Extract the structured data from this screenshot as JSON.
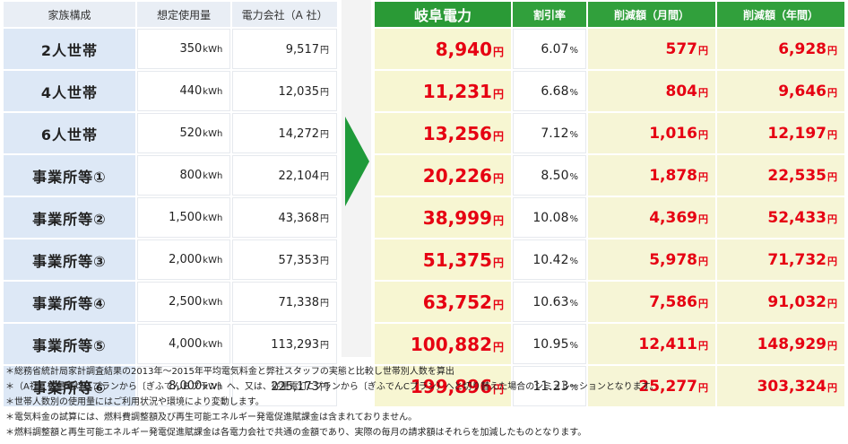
{
  "left": {
    "headers": [
      "家族構成",
      "想定使用量",
      "電力会社（A 社）"
    ],
    "rows": [
      {
        "label": "2人世帯",
        "usage": "350",
        "cost": "9,517"
      },
      {
        "label": "4人世帯",
        "usage": "440",
        "cost": "12,035"
      },
      {
        "label": "6人世帯",
        "usage": "520",
        "cost": "14,272"
      },
      {
        "label": "事業所等①",
        "usage": "800",
        "cost": "22,104"
      },
      {
        "label": "事業所等②",
        "usage": "1,500",
        "cost": "43,368"
      },
      {
        "label": "事業所等③",
        "usage": "2,000",
        "cost": "57,353"
      },
      {
        "label": "事業所等④",
        "usage": "2,500",
        "cost": "71,338"
      },
      {
        "label": "事業所等⑤",
        "usage": "4,000",
        "cost": "113,293"
      },
      {
        "label": "事業所等⑥",
        "usage": "8,000",
        "cost": "225,173"
      }
    ]
  },
  "right": {
    "headers": [
      "岐阜電力",
      "割引率",
      "削減額（月間）",
      "削減額（年間）"
    ],
    "rows": [
      {
        "gifu": "8,940",
        "rate": "6.07",
        "monthly": "577",
        "annual": "6,928"
      },
      {
        "gifu": "11,231",
        "rate": "6.68",
        "monthly": "804",
        "annual": "9,646"
      },
      {
        "gifu": "13,256",
        "rate": "7.12",
        "monthly": "1,016",
        "annual": "12,197"
      },
      {
        "gifu": "20,226",
        "rate": "8.50",
        "monthly": "1,878",
        "annual": "22,535"
      },
      {
        "gifu": "38,999",
        "rate": "10.08",
        "monthly": "4,369",
        "annual": "52,433"
      },
      {
        "gifu": "51,375",
        "rate": "10.42",
        "monthly": "5,978",
        "annual": "71,732"
      },
      {
        "gifu": "63,752",
        "rate": "10.63",
        "monthly": "7,586",
        "annual": "91,032"
      },
      {
        "gifu": "100,882",
        "rate": "10.95",
        "monthly": "12,411",
        "annual": "148,929"
      },
      {
        "gifu": "199,896",
        "rate": "11.23",
        "monthly": "25,277",
        "annual": "303,324"
      }
    ]
  },
  "units": {
    "kwh": "kWh",
    "yen": "円",
    "percent": "%"
  },
  "colors": {
    "accent_green": "#31a03c",
    "red": "#e60012",
    "label_blue": "#dde8f6",
    "cream": "#f7f6d2"
  },
  "notes": [
    "＊総務省統計局家計調査結果の2013年～2015年平均電気料金と弊社スタッフの実態と比較し世帯別人数を算出",
    "＊（A社）従量電灯Ｂプランから〔ぎふでんＢプラン〕へ、又は、従量電灯Cプランから〔ぎふでんCプラン〕へと切り替えた場合のシミュレーションとなります。",
    "＊世帯人数別の使用量にはご利用状況や環境により変動します。",
    "＊電気料金の試算には、燃料費調整額及び再生可能エネルギー発電促進賦課金は含まれておりません。",
    "＊燃料調整額と再生可能エネルギー発電促進賦課金は各電力会社で共通の金額であり、実際の毎月の請求額はそれらを加減したものとなります。"
  ],
  "chart_data": {
    "type": "table",
    "columns": [
      "家族構成",
      "想定使用量",
      "電力会社（A 社）",
      "岐阜電力",
      "割引率",
      "削減額（月間）",
      "削減額（年間）"
    ],
    "rows": [
      [
        "2人世帯",
        "350kWh",
        "9,517円",
        "8,940円",
        "6.07%",
        "577円",
        "6,928円"
      ],
      [
        "4人世帯",
        "440kWh",
        "12,035円",
        "11,231円",
        "6.68%",
        "804円",
        "9,646円"
      ],
      [
        "6人世帯",
        "520kWh",
        "14,272円",
        "13,256円",
        "7.12%",
        "1,016円",
        "12,197円"
      ],
      [
        "事業所等①",
        "800kWh",
        "22,104円",
        "20,226円",
        "8.50%",
        "1,878円",
        "22,535円"
      ],
      [
        "事業所等②",
        "1,500kWh",
        "43,368円",
        "38,999円",
        "10.08%",
        "4,369円",
        "52,433円"
      ],
      [
        "事業所等③",
        "2,000kWh",
        "57,353円",
        "51,375円",
        "10.42%",
        "5,978円",
        "71,732円"
      ],
      [
        "事業所等④",
        "2,500kWh",
        "71,338円",
        "63,752円",
        "10.63%",
        "7,586円",
        "91,032円"
      ],
      [
        "事業所等⑤",
        "4,000kWh",
        "113,293円",
        "100,882円",
        "10.95%",
        "12,411円",
        "148,929円"
      ],
      [
        "事業所等⑥",
        "8,000kWh",
        "225,173円",
        "199,896円",
        "11.23%",
        "25,277円",
        "303,324円"
      ]
    ]
  }
}
